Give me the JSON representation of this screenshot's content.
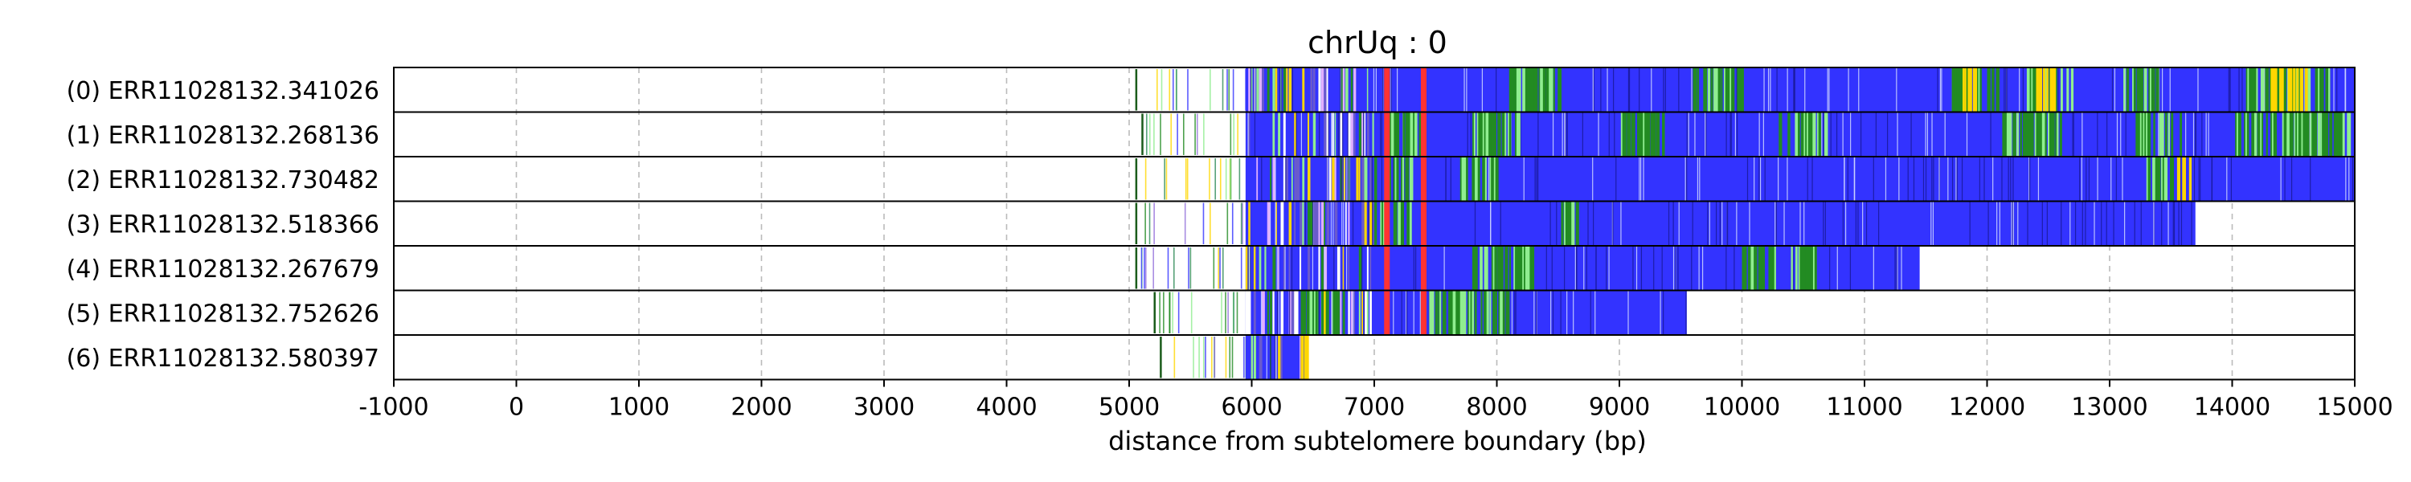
{
  "chart_data": {
    "type": "read-track",
    "title": "chrUq : 0",
    "xlabel": "distance from subtelomere boundary (bp)",
    "ylabel": "",
    "xlim": [
      -1000,
      15000
    ],
    "xticks": [
      -1000,
      0,
      1000,
      2000,
      3000,
      4000,
      5000,
      6000,
      7000,
      8000,
      9000,
      10000,
      11000,
      12000,
      13000,
      14000,
      15000
    ],
    "grid": "vertical dashed",
    "colors": {
      "repeat_block": "#3333ff",
      "green_variant": "#228b22",
      "light_green": "#90ee90",
      "yellow_variant": "#ffd700",
      "red_variant": "#ff3333",
      "white_gap": "#ffffff",
      "grid": "#bbbbbb"
    },
    "reads": [
      {
        "label": "(0) ERR11028132.341026",
        "sparse_start": 5050,
        "dense_start": 5950,
        "end": 15000,
        "green_zones": [
          [
            8100,
            8500
          ],
          [
            9600,
            10000
          ],
          [
            11700,
            12100
          ],
          [
            12300,
            12700
          ],
          [
            13100,
            13400
          ],
          [
            14100,
            14800
          ]
        ],
        "yellow_zones": [
          [
            11800,
            11900
          ],
          [
            12400,
            12550
          ],
          [
            14300,
            14600
          ]
        ]
      },
      {
        "label": "(1) ERR11028132.268136",
        "sparse_start": 5100,
        "dense_start": 5950,
        "end": 15000,
        "green_zones": [
          [
            7100,
            7400
          ],
          [
            7800,
            8200
          ],
          [
            9000,
            9400
          ],
          [
            10300,
            10700
          ],
          [
            12100,
            12600
          ],
          [
            13200,
            13600
          ],
          [
            14000,
            14950
          ]
        ],
        "yellow_zones": []
      },
      {
        "label": "(2) ERR11028132.730482",
        "sparse_start": 5050,
        "dense_start": 5950,
        "end": 15000,
        "green_zones": [
          [
            7000,
            7300
          ],
          [
            7700,
            8000
          ],
          [
            13300,
            13500
          ]
        ],
        "yellow_zones": [
          [
            13550,
            13650
          ]
        ]
      },
      {
        "label": "(3) ERR11028132.518366",
        "sparse_start": 5050,
        "dense_start": 5950,
        "end": 13700,
        "green_zones": [
          [
            7000,
            7300
          ],
          [
            8500,
            8650
          ]
        ],
        "yellow_zones": []
      },
      {
        "label": "(4) ERR11028132.267679",
        "sparse_start": 5050,
        "dense_start": 5950,
        "end": 11450,
        "green_zones": [
          [
            7800,
            8300
          ],
          [
            10000,
            10300
          ],
          [
            10400,
            10600
          ]
        ],
        "yellow_zones": []
      },
      {
        "label": "(5) ERR11028132.752626",
        "sparse_start": 5200,
        "dense_start": 5950,
        "end": 9550,
        "green_zones": [
          [
            6400,
            6700
          ],
          [
            7400,
            8100
          ]
        ],
        "yellow_zones": []
      },
      {
        "label": "(6) ERR11028132.580397",
        "sparse_start": 5250,
        "dense_start": 5950,
        "end": 6450,
        "green_zones": [],
        "yellow_zones": [
          [
            6400,
            6450
          ]
        ]
      }
    ],
    "red_markers": [
      7100,
      7400
    ]
  }
}
